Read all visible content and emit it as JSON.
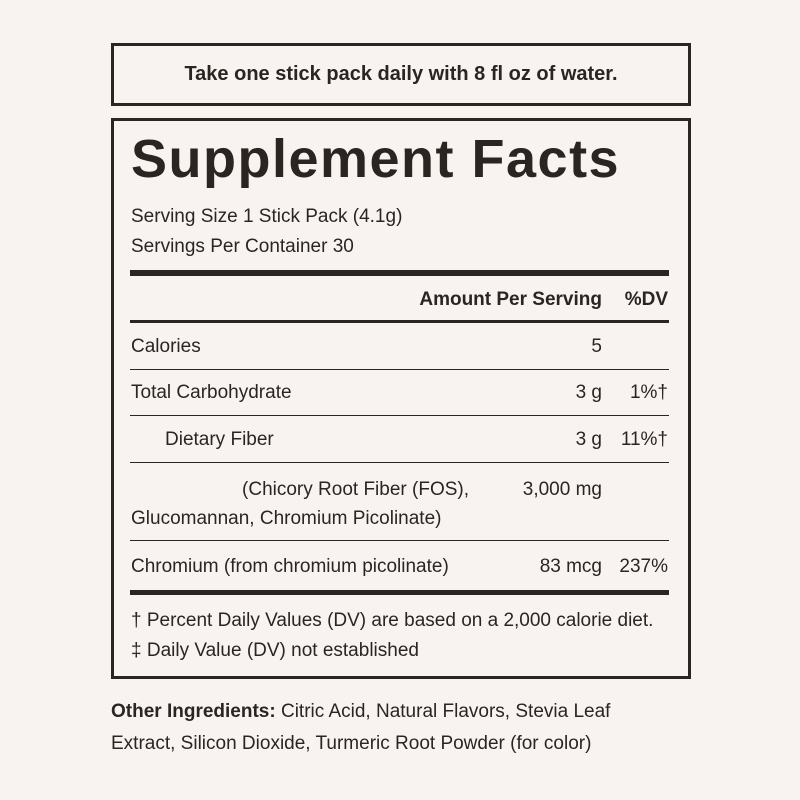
{
  "directions": "Take one stick pack daily with 8 fl oz of water.",
  "facts": {
    "title": "Supplement Facts",
    "serving_size": "Serving Size 1 Stick Pack (4.1g)",
    "servings_per_container": "Servings Per Container 30",
    "header": {
      "amount": "Amount Per Serving",
      "dv": "%DV"
    },
    "rows": [
      {
        "name": "Calories",
        "amount": "5"
      },
      {
        "name": "Total Carbohydrate",
        "amount": "3 g",
        "dv": "1%†"
      },
      {
        "name": "Dietary Fiber",
        "amount": "3 g",
        "dv": "11%†"
      },
      {
        "name_lines": [
          "(Chicory Root Fiber (FOS),",
          "Glucomannan, Chromium Picolinate)"
        ],
        "amount": "3,000 mg"
      },
      {
        "name": "Chromium (from chromium picolinate)",
        "amount": "83 mcg",
        "dv": "237%"
      }
    ],
    "footnotes": [
      "† Percent Daily Values (DV) are based on a 2,000 calorie diet.",
      "‡ Daily Value (DV) not established"
    ]
  },
  "other_ingredients": {
    "label": "Other Ingredients:",
    "text": "Citric Acid, Natural Flavors, Stevia Leaf Extract,  Silicon Dioxide, Turmeric Root Powder (for color)"
  }
}
